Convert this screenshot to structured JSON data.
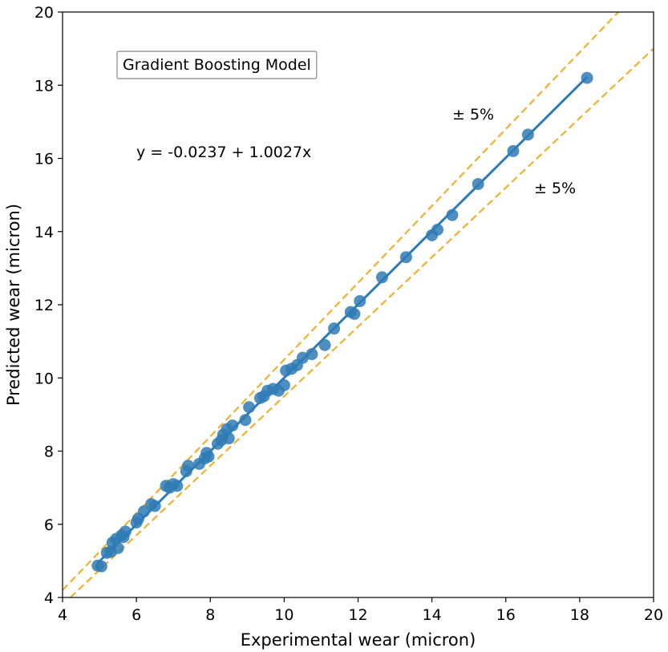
{
  "chart_data": {
    "type": "scatter",
    "title": "",
    "xlabel": "Experimental wear (micron)",
    "ylabel": "Predicted wear (micron)",
    "xlim": [
      4,
      20
    ],
    "ylim": [
      4,
      20
    ],
    "xticks": [
      "4",
      "6",
      "8",
      "10",
      "12",
      "14",
      "16",
      "18",
      "20"
    ],
    "yticks": [
      "4",
      "6",
      "8",
      "10",
      "12",
      "14",
      "16",
      "18",
      "20"
    ],
    "grid": false,
    "model_label": "Gradient Boosting Model",
    "equation": "y = -0.0237 + 1.0027x",
    "fit": {
      "intercept": -0.0237,
      "slope": 1.0027
    },
    "band_labels": [
      "± 5%",
      "± 5%"
    ],
    "band_factors": [
      1.05,
      0.95
    ],
    "colors": {
      "points": "#2f7bb5",
      "fit_line": "#2f7bb5",
      "bands": "#f0b030"
    },
    "points": [
      [
        4.95,
        4.87
      ],
      [
        5.05,
        4.85
      ],
      [
        5.2,
        5.22
      ],
      [
        5.3,
        5.25
      ],
      [
        5.35,
        5.5
      ],
      [
        5.45,
        5.6
      ],
      [
        5.5,
        5.35
      ],
      [
        5.6,
        5.7
      ],
      [
        5.65,
        5.65
      ],
      [
        5.7,
        5.8
      ],
      [
        6.0,
        6.05
      ],
      [
        6.05,
        6.15
      ],
      [
        6.2,
        6.35
      ],
      [
        6.4,
        6.55
      ],
      [
        6.5,
        6.5
      ],
      [
        6.8,
        7.05
      ],
      [
        6.9,
        7.0
      ],
      [
        7.0,
        7.1
      ],
      [
        7.1,
        7.05
      ],
      [
        7.35,
        7.45
      ],
      [
        7.4,
        7.6
      ],
      [
        7.7,
        7.65
      ],
      [
        7.85,
        7.8
      ],
      [
        7.9,
        7.95
      ],
      [
        7.95,
        7.85
      ],
      [
        8.2,
        8.2
      ],
      [
        8.3,
        8.3
      ],
      [
        8.35,
        8.45
      ],
      [
        8.45,
        8.6
      ],
      [
        8.5,
        8.35
      ],
      [
        8.6,
        8.7
      ],
      [
        8.95,
        8.85
      ],
      [
        9.05,
        9.2
      ],
      [
        9.35,
        9.45
      ],
      [
        9.45,
        9.5
      ],
      [
        9.55,
        9.65
      ],
      [
        9.7,
        9.7
      ],
      [
        9.85,
        9.65
      ],
      [
        10.0,
        9.8
      ],
      [
        10.05,
        10.2
      ],
      [
        10.2,
        10.25
      ],
      [
        10.35,
        10.35
      ],
      [
        10.5,
        10.55
      ],
      [
        10.75,
        10.65
      ],
      [
        11.1,
        10.9
      ],
      [
        11.35,
        11.35
      ],
      [
        11.8,
        11.8
      ],
      [
        11.9,
        11.75
      ],
      [
        12.05,
        12.1
      ],
      [
        12.65,
        12.75
      ],
      [
        13.3,
        13.3
      ],
      [
        14.0,
        13.9
      ],
      [
        14.15,
        14.05
      ],
      [
        14.55,
        14.45
      ],
      [
        15.25,
        15.3
      ],
      [
        16.2,
        16.2
      ],
      [
        16.6,
        16.65
      ],
      [
        18.2,
        18.2
      ]
    ]
  }
}
